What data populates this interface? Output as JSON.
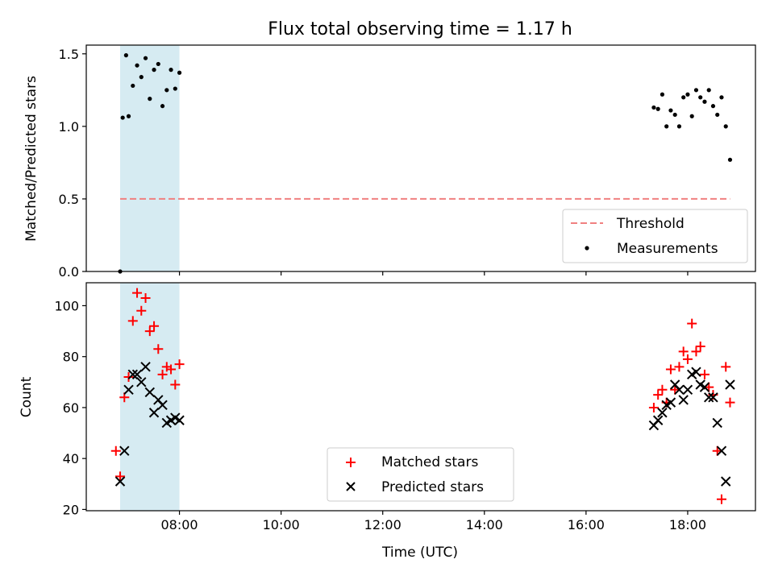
{
  "chart_data": [
    {
      "type": "scatter",
      "title": "Flux total observing time = 1.17 h",
      "ylabel": "Matched/Predicted stars",
      "xlabel": "",
      "xlim": [
        "06:10",
        "19:20"
      ],
      "ylim": [
        0,
        1.56
      ],
      "yticks": [
        "0.0",
        "0.5",
        "1.0",
        "1.5"
      ],
      "grid": false,
      "legend": "bottom-right",
      "highlight_span": {
        "start": "06:50",
        "end": "08:00",
        "color": "#add8e6"
      },
      "threshold": {
        "name": "Threshold",
        "value": 0.5,
        "start": "06:50",
        "end": "18:50",
        "color": "#f08080",
        "style": "dashed"
      },
      "series": [
        {
          "name": "Measurements",
          "color": "#000000",
          "marker": "dot",
          "x": [
            "06:50",
            "06:53",
            "06:57",
            "07:00",
            "07:05",
            "07:10",
            "07:15",
            "07:20",
            "07:25",
            "07:30",
            "07:35",
            "07:40",
            "07:45",
            "07:50",
            "07:55",
            "08:00",
            "17:20",
            "17:25",
            "17:30",
            "17:35",
            "17:40",
            "17:45",
            "17:50",
            "17:55",
            "18:00",
            "18:05",
            "18:10",
            "18:15",
            "18:20",
            "18:25",
            "18:30",
            "18:35",
            "18:40",
            "18:45",
            "18:50"
          ],
          "y": [
            0.0,
            1.06,
            1.49,
            1.07,
            1.28,
            1.42,
            1.34,
            1.47,
            1.19,
            1.39,
            1.43,
            1.14,
            1.25,
            1.39,
            1.26,
            1.37,
            1.13,
            1.12,
            1.22,
            1.0,
            1.11,
            1.08,
            1.0,
            1.2,
            1.22,
            1.07,
            1.25,
            1.2,
            1.17,
            1.25,
            1.14,
            1.08,
            1.2,
            1.0,
            0.77
          ]
        }
      ]
    },
    {
      "type": "scatter",
      "title": "",
      "ylabel": "Count",
      "xlabel": "Time (UTC)",
      "xlim": [
        "06:10",
        "19:20"
      ],
      "ylim": [
        19.5,
        109
      ],
      "xticks": [
        "08:00",
        "10:00",
        "12:00",
        "14:00",
        "16:00",
        "18:00"
      ],
      "yticks": [
        "20",
        "40",
        "60",
        "80",
        "100"
      ],
      "grid": false,
      "legend": "bottom-center",
      "highlight_span": {
        "start": "06:50",
        "end": "08:00",
        "color": "#add8e6"
      },
      "series": [
        {
          "name": "Matched stars",
          "color": "#ff0000",
          "marker": "plus",
          "x": [
            "06:45",
            "06:50",
            "06:55",
            "07:00",
            "07:05",
            "07:10",
            "07:15",
            "07:20",
            "07:25",
            "07:30",
            "07:35",
            "07:40",
            "07:45",
            "07:50",
            "07:55",
            "08:00",
            "17:20",
            "17:25",
            "17:30",
            "17:35",
            "17:40",
            "17:45",
            "17:50",
            "17:55",
            "18:00",
            "18:05",
            "18:10",
            "18:15",
            "18:20",
            "18:25",
            "18:30",
            "18:35",
            "18:40",
            "18:45",
            "18:50"
          ],
          "y": [
            43,
            33,
            64,
            72,
            94,
            105,
            98,
            103,
            90,
            92,
            83,
            73,
            76,
            75,
            69,
            77,
            60,
            65,
            67,
            62,
            75,
            67,
            76,
            82,
            79,
            93,
            82,
            84,
            73,
            68,
            65,
            43,
            24,
            76,
            62
          ]
        },
        {
          "name": "Predicted stars",
          "color": "#000000",
          "marker": "x",
          "x": [
            "06:50",
            "06:55",
            "07:00",
            "07:05",
            "07:10",
            "07:15",
            "07:20",
            "07:25",
            "07:30",
            "07:35",
            "07:40",
            "07:45",
            "07:50",
            "07:55",
            "08:00",
            "17:20",
            "17:25",
            "17:30",
            "17:35",
            "17:40",
            "17:45",
            "17:50",
            "17:55",
            "18:00",
            "18:05",
            "18:10",
            "18:15",
            "18:20",
            "18:25",
            "18:30",
            "18:35",
            "18:40",
            "18:45",
            "18:50"
          ],
          "y": [
            31,
            43,
            67,
            73,
            73,
            70,
            76,
            66,
            58,
            63,
            61,
            54,
            55,
            56,
            55,
            53,
            55,
            58,
            61,
            62,
            69,
            67,
            63,
            67,
            73,
            74,
            69,
            68,
            64,
            64,
            54,
            43,
            31,
            69
          ]
        }
      ]
    }
  ]
}
